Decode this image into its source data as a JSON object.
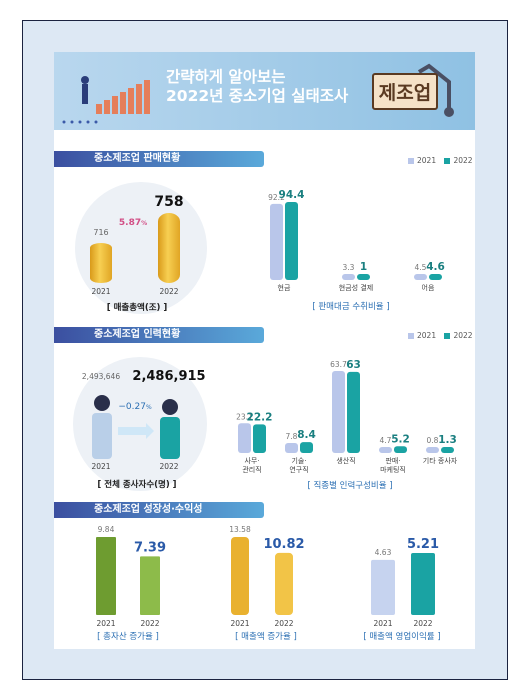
{
  "banner": {
    "line1": "간략하게 알아보는",
    "line2": "2022년 중소기업 실태조사",
    "tag": "제조업"
  },
  "legend": {
    "y2021": "2021",
    "y2022": "2022"
  },
  "colors": {
    "y2021": "#b9c6ea",
    "y2022": "#1aa3a3",
    "coin": "#f3c34a",
    "green": "#7cae3c",
    "navy": "#3b4fa0"
  },
  "sections": {
    "sales": {
      "title": "중소제조업 판매현황",
      "revenue": {
        "caption": "[ 매출총액(조) ]",
        "v2021": "716",
        "v2022": "758",
        "growth": "5.87",
        "growth_unit": "%",
        "y2021": "2021",
        "y2022": "2022"
      },
      "chart_caption": "[ 판매대금 수취비율 ]"
    },
    "workforce": {
      "title": "중소제조업 인력현황",
      "employees": {
        "caption": "[ 전체 종사자수(명) ]",
        "v2021": "2,493,646",
        "v2022": "2,486,915",
        "change": "−0.27",
        "change_unit": "%",
        "y2021": "2021",
        "y2022": "2022"
      },
      "chart_caption": "[ 직종별 인력구성비율 ]"
    },
    "growth": {
      "title": "중소제조업 성장성·수익성",
      "assets": {
        "caption": "[ 총자산 증가율 ]",
        "v2021": "9.84",
        "v2022": "7.39",
        "y2021": "2021",
        "y2022": "2022"
      },
      "sales_growth": {
        "caption": "[ 매출액 증가율 ]",
        "v2021": "13.58",
        "v2022": "10.82",
        "y2021": "2021",
        "y2022": "2022"
      },
      "margin": {
        "caption": "[ 매출액 영업이익률 ]",
        "v2021": "4.63",
        "v2022": "5.21",
        "y2021": "2021",
        "y2022": "2022"
      }
    }
  },
  "chart_data": [
    {
      "type": "bar",
      "title": "매출총액(조)",
      "categories": [
        "2021",
        "2022"
      ],
      "values": [
        716,
        758
      ],
      "annotation": "5.87%"
    },
    {
      "type": "bar",
      "title": "판매대금 수취비율",
      "categories": [
        "현금",
        "현금성 결제",
        "어음"
      ],
      "series": [
        {
          "name": "2021",
          "values": [
            92.2,
            3.3,
            4.5
          ]
        },
        {
          "name": "2022",
          "values": [
            94.4,
            1.0,
            4.6
          ]
        }
      ],
      "legend": "top-right"
    },
    {
      "type": "bar",
      "title": "전체 종사자수(명)",
      "categories": [
        "2021",
        "2022"
      ],
      "values": [
        2493646,
        2486915
      ],
      "annotation": "−0.27%"
    },
    {
      "type": "bar",
      "title": "직종별 인력구성비율",
      "categories": [
        "사무·관리직",
        "기술·연구직",
        "생산직",
        "판매·마케팅직",
        "기타 종사자"
      ],
      "series": [
        {
          "name": "2021",
          "values": [
            23.1,
            7.8,
            63.7,
            4.7,
            0.8
          ]
        },
        {
          "name": "2022",
          "values": [
            22.2,
            8.4,
            63.0,
            5.2,
            1.3
          ]
        }
      ],
      "legend": "top-right"
    },
    {
      "type": "bar",
      "title": "총자산 증가율",
      "categories": [
        "2021",
        "2022"
      ],
      "values": [
        9.84,
        7.39
      ]
    },
    {
      "type": "bar",
      "title": "매출액 증가율",
      "categories": [
        "2021",
        "2022"
      ],
      "values": [
        13.58,
        10.82
      ]
    },
    {
      "type": "bar",
      "title": "매출액 영업이익률",
      "categories": [
        "2021",
        "2022"
      ],
      "values": [
        4.63,
        5.21
      ]
    }
  ]
}
